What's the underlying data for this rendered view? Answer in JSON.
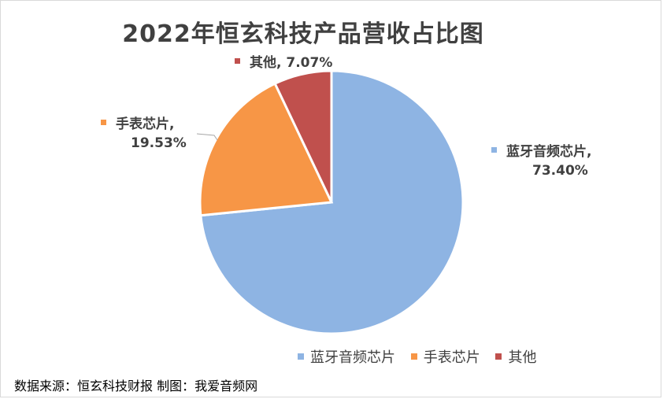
{
  "chart_data": {
    "type": "pie",
    "title": "2022年恒玄科技产品营收占比图",
    "slices": [
      {
        "name": "蓝牙音频芯片",
        "value": 73.4,
        "label": "73.40%",
        "color": "#8EB4E3"
      },
      {
        "name": "手表芯片",
        "value": 19.53,
        "label": "19.53%",
        "color": "#F79646"
      },
      {
        "name": "其他",
        "value": 7.07,
        "label": "7.07%",
        "color": "#C0504D"
      }
    ],
    "legend_position": "bottom-right",
    "source_note": "数据来源：恒玄科技财报  制图：我爱音频网"
  }
}
